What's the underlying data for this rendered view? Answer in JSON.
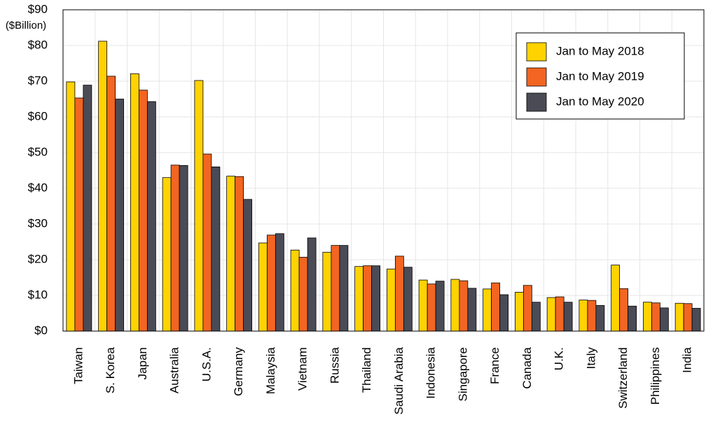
{
  "chart_data": {
    "type": "bar",
    "y_axis_label": "($Billion)",
    "categories": [
      "Taiwan",
      "S. Korea",
      "Japan",
      "Australia",
      "U.S.A.",
      "Germany",
      "Malaysia",
      "Vietnam",
      "Russia",
      "Thailand",
      "Saudi Arabia",
      "Indonesia",
      "Singapore",
      "France",
      "Canada",
      "U.K.",
      "Italy",
      "Switzerland",
      "Philippines",
      "India"
    ],
    "series": [
      {
        "name": "Jan to May 2018",
        "color": "#ffd200",
        "values": [
          69.8,
          81.2,
          72.1,
          43.0,
          70.2,
          43.4,
          24.7,
          22.7,
          22.1,
          18.1,
          17.4,
          14.3,
          14.5,
          11.8,
          10.9,
          9.4,
          8.7,
          18.5,
          8.1,
          7.8
        ]
      },
      {
        "name": "Jan to May 2019",
        "color": "#f26522",
        "values": [
          65.3,
          71.4,
          67.5,
          46.5,
          49.6,
          43.3,
          26.9,
          20.7,
          24.0,
          18.3,
          21.0,
          13.2,
          14.1,
          13.5,
          12.8,
          9.6,
          8.6,
          11.9,
          7.9,
          7.7
        ]
      },
      {
        "name": "Jan to May 2020",
        "color": "#4a4b55",
        "values": [
          68.9,
          65.0,
          64.3,
          46.4,
          46.0,
          36.9,
          27.3,
          26.1,
          24.0,
          18.3,
          17.9,
          14.0,
          12.0,
          10.2,
          8.1,
          8.1,
          7.2,
          7.0,
          6.5,
          6.4
        ]
      }
    ],
    "ylim": [
      0,
      90
    ],
    "yticks": [
      {
        "value": 0,
        "label": "$0"
      },
      {
        "value": 10,
        "label": "$10"
      },
      {
        "value": 20,
        "label": "$20"
      },
      {
        "value": 30,
        "label": "$30"
      },
      {
        "value": 40,
        "label": "$40"
      },
      {
        "value": 50,
        "label": "$50"
      },
      {
        "value": 60,
        "label": "$60"
      },
      {
        "value": 70,
        "label": "$70"
      },
      {
        "value": 80,
        "label": "$80"
      },
      {
        "value": 90,
        "label": "$90"
      }
    ],
    "grid": true,
    "legend_position": "upper right"
  }
}
